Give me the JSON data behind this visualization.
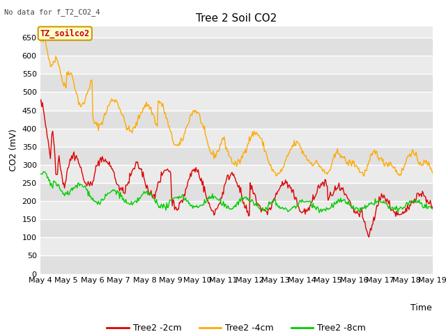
{
  "title": "Tree 2 Soil CO2",
  "subtitle": "No data for f_T2_CO2_4",
  "xlabel": "Time",
  "ylabel": "CO2 (mV)",
  "ylim": [
    0,
    680
  ],
  "yticks": [
    0,
    50,
    100,
    150,
    200,
    250,
    300,
    350,
    400,
    450,
    500,
    550,
    600,
    650
  ],
  "x_labels": [
    "May 4",
    "May 5",
    "May 6",
    "May 7",
    "May 8",
    "May 9",
    "May 10",
    "May 11",
    "May 12",
    "May 13",
    "May 14",
    "May 15",
    "May 16",
    "May 17",
    "May 18",
    "May 19"
  ],
  "annotation_text": "TZ_soilco2",
  "annotation_color": "#cc0000",
  "annotation_bg": "#ffffcc",
  "annotation_border": "#cc9900",
  "line_2cm_color": "#dd0000",
  "line_4cm_color": "#ffaa00",
  "line_8cm_color": "#00cc00",
  "band_colors": [
    "#e8e8e8",
    "#f0f0f0"
  ],
  "n_points": 500
}
